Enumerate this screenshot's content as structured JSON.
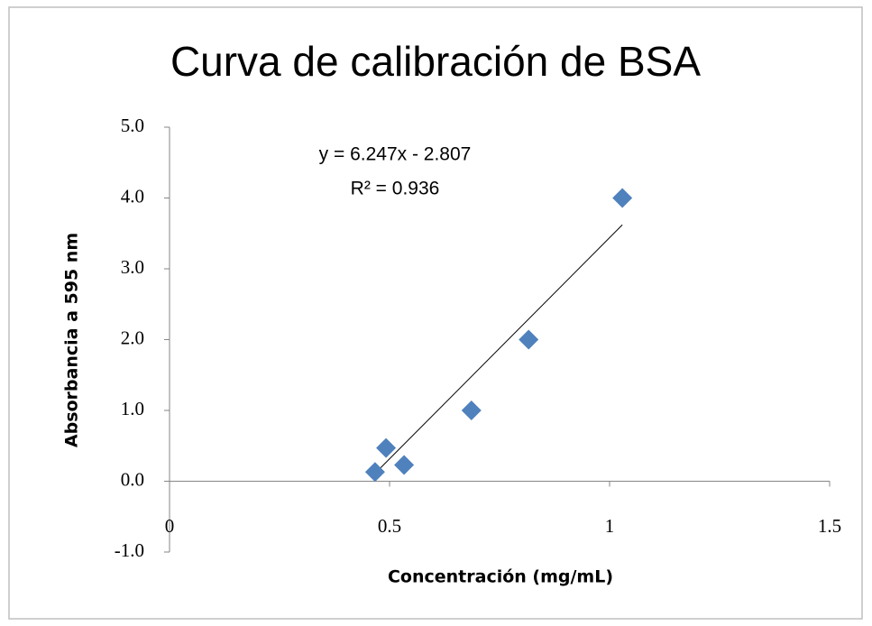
{
  "chart_data": {
    "type": "scatter",
    "title": "Curva de calibración de BSA",
    "x_label": "Concentración (mg/mL)",
    "y_label": "Absorbancia a 595 nm",
    "annotations": [
      "y = 6.247x - 2.807",
      "R² = 0.936"
    ],
    "trendline": {
      "slope": 6.247,
      "intercept": -2.807,
      "color": "#000000"
    },
    "series": [
      {
        "color": "#4f81bd",
        "x": [
          0.467,
          0.492,
          0.533,
          0.686,
          0.816,
          1.029
        ],
        "values": [
          0.13,
          0.47,
          0.23,
          1.0,
          2.0,
          4.0
        ]
      }
    ],
    "xlim": [
      0,
      1.5
    ],
    "xticks": [
      0,
      0.5,
      1,
      1.5
    ],
    "ylim": [
      -1,
      5
    ],
    "yticks": [
      {
        "value": -1,
        "label": "-1.0"
      },
      {
        "value": 0,
        "label": "0.0"
      },
      {
        "value": 1,
        "label": "1.0"
      },
      {
        "value": 2,
        "label": "2.0"
      },
      {
        "value": 3,
        "label": "3.0"
      },
      {
        "value": 4,
        "label": "4.0"
      },
      {
        "value": 5,
        "label": "5.0"
      }
    ]
  }
}
